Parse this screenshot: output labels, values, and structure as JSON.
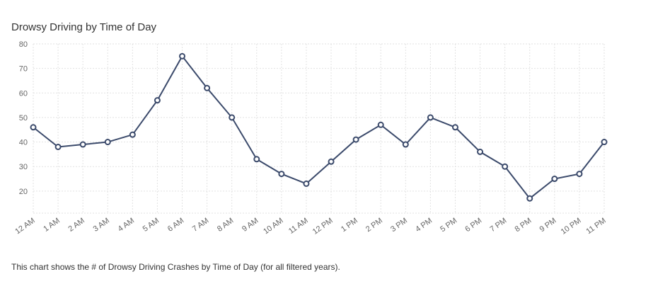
{
  "chart_data": {
    "type": "line",
    "title": "Drowsy Driving by Time of Day",
    "xlabel": "",
    "ylabel": "",
    "categories": [
      "12 AM",
      "1 AM",
      "2 AM",
      "3 AM",
      "4 AM",
      "5 AM",
      "6 AM",
      "7 AM",
      "8 AM",
      "9 AM",
      "10 AM",
      "11 AM",
      "12 PM",
      "1 PM",
      "2 PM",
      "3 PM",
      "4 PM",
      "5 PM",
      "6 PM",
      "7 PM",
      "8 PM",
      "9 PM",
      "10 PM",
      "11 PM"
    ],
    "series": [
      {
        "name": "Drowsy Driving Crashes",
        "values": [
          46,
          38,
          39,
          40,
          43,
          57,
          75,
          62,
          50,
          33,
          27,
          23,
          32,
          41,
          47,
          39,
          50,
          46,
          36,
          30,
          17,
          25,
          27,
          40
        ]
      }
    ],
    "yticks": [
      20,
      30,
      40,
      50,
      60,
      70,
      80
    ],
    "ylim": [
      11,
      80
    ],
    "grid": true,
    "line_color": "#3b4a6b"
  },
  "caption": "This chart shows the # of Drowsy Driving Crashes by Time of Day (for all filtered years)."
}
